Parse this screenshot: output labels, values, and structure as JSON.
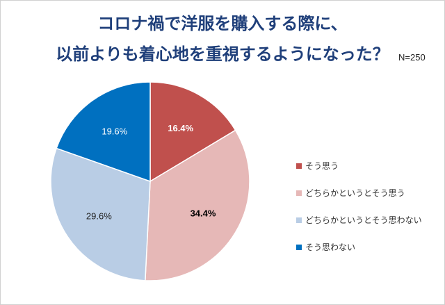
{
  "chart_data": {
    "type": "pie",
    "title_lines": [
      "コロナ禍で洋服を購入する際に、",
      "以前よりも着心地を重視するようになった？"
    ],
    "sample_size": "N=250",
    "slices": [
      {
        "label": "そう思う",
        "value": 16.4,
        "value_label": "16.4%",
        "color": "#c0504d",
        "label_color": "#ffffff",
        "bold": true
      },
      {
        "label": "どちらかというとそう思う",
        "value": 34.4,
        "value_label": "34.4%",
        "color": "#e6b8b7",
        "label_color": "#000000",
        "bold": true
      },
      {
        "label": "どちらかというとそう思わない",
        "value": 29.6,
        "value_label": "29.6%",
        "color": "#b9cde5",
        "label_color": "#222222",
        "bold": false
      },
      {
        "label": "そう思わない",
        "value": 19.6,
        "value_label": "19.6%",
        "color": "#0070c0",
        "label_color": "#ffffff",
        "bold": false
      }
    ],
    "legend_position": "right"
  }
}
